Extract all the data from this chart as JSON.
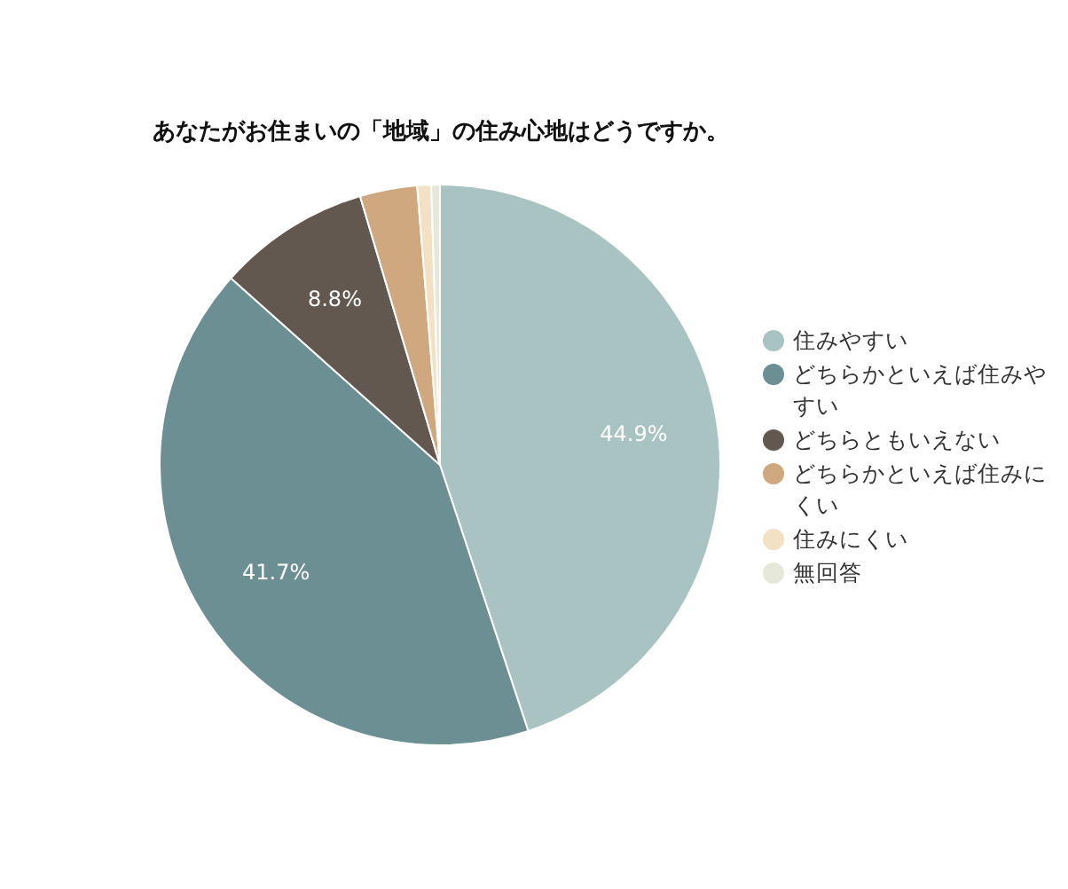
{
  "chart_data": {
    "type": "pie",
    "title": "あなたがお住まいの「地域」の住み心地はどうですか。",
    "categories": [
      "住みやすい",
      "どちらかといえば住みやすい",
      "どちらともいえない",
      "どちらかといえば住みにくい",
      "住みにくい",
      "無回答"
    ],
    "values": [
      44.9,
      41.7,
      8.8,
      3.3,
      0.8,
      0.5
    ],
    "colors": [
      "#a9c3c2",
      "#6c8f94",
      "#625850",
      "#cfa880",
      "#f2e1c4",
      "#e6e8da"
    ],
    "value_labels": [
      "44.9%",
      "41.7%",
      "8.8%",
      null,
      null,
      null
    ],
    "legend": "right"
  }
}
